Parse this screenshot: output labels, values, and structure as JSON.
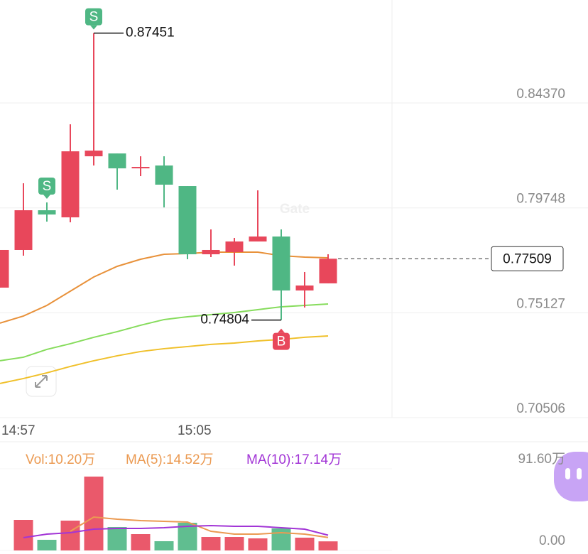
{
  "chart_data": [
    {
      "type": "candlestick",
      "categories": [
        "14:57",
        null,
        null,
        null,
        null,
        null,
        null,
        null,
        "15:05",
        null,
        null,
        null,
        null,
        null,
        null
      ],
      "open": [
        0.76235,
        0.77893,
        0.79645,
        0.79332,
        0.82023,
        0.82148,
        0.81523,
        0.81617,
        0.80709,
        0.77705,
        0.77799,
        0.78269,
        0.78488,
        0.7611,
        0.76423
      ],
      "high": [
        0.77893,
        0.80834,
        0.7999,
        0.83431,
        0.87451,
        0.82148,
        0.82023,
        0.82023,
        0.80709,
        0.788,
        0.78425,
        0.80522,
        0.788,
        0.76923,
        0.77705
      ],
      "low": [
        0.76235,
        0.77643,
        0.79145,
        0.79113,
        0.81617,
        0.80553,
        0.81147,
        0.7977,
        0.77486,
        0.7758,
        0.77205,
        0.78269,
        0.74804,
        0.75359,
        0.76423
      ],
      "close": [
        0.77893,
        0.79645,
        0.79458,
        0.82242,
        0.82274,
        0.81491,
        0.81554,
        0.80772,
        0.77705,
        0.77893,
        0.78269,
        0.78488,
        0.7611,
        0.76329,
        0.77509
      ],
      "up_color": "#e8475b",
      "down_color": "#4fb784",
      "series": [
        {
          "color": "#e8913a",
          "values": [
            0.7467,
            0.74983,
            0.75452,
            0.76078,
            0.76704,
            0.77173,
            0.77486,
            0.77705,
            0.77737,
            0.77799,
            0.77799,
            0.77799,
            0.77643,
            0.7758,
            0.77549
          ]
        },
        {
          "color": "#86dc5c",
          "values": [
            0.73012,
            0.73168,
            0.73513,
            0.73763,
            0.74045,
            0.74295,
            0.74577,
            0.74827,
            0.74952,
            0.75046,
            0.7514,
            0.75265,
            0.7539,
            0.75453,
            0.75515
          ]
        },
        {
          "color": "#f0c02a",
          "values": [
            0.72011,
            0.7223,
            0.7248,
            0.72762,
            0.73012,
            0.73231,
            0.73419,
            0.73544,
            0.73638,
            0.73732,
            0.73794,
            0.73888,
            0.73951,
            0.74045,
            0.74107
          ]
        }
      ],
      "ylim": [
        0.70506,
        0.8891
      ],
      "yticks": [
        {
          "value": 0.8437,
          "label": "0.84370"
        },
        {
          "value": 0.79748,
          "label": "0.79748"
        },
        {
          "value": 0.75127,
          "label": "0.75127"
        },
        {
          "value": 0.70506,
          "label": "0.70506"
        }
      ],
      "max_price": 0.87451,
      "min_price": 0.74804,
      "last_price": 0.77509,
      "signals": [
        {
          "index": 2,
          "label": "S",
          "color": "#4fb784"
        },
        {
          "index": 4,
          "label": "S",
          "color": "#4fb784"
        },
        {
          "index": 12,
          "label": "B",
          "color": "#e8475b"
        }
      ],
      "watermark": "Gate"
    },
    {
      "type": "bar",
      "bars": {
        "name": "Vol:10.20万",
        "color": "#eb9a52",
        "values": [
          null,
          34.25,
          11.95,
          33.45,
          82.84,
          26.28,
          18.32,
          10.35,
          31.06,
          15.13,
          15.13,
          13.54,
          24.69,
          14.34,
          10.2
        ]
      },
      "series": [
        {
          "name": "MA(5):14.52万",
          "color": "#eb9a52",
          "values": [
            null,
            null,
            null,
            21.51,
            37.44,
            35.05,
            33.45,
            32.66,
            31.86,
            21.51,
            18.32,
            18.32,
            19.91,
            18.32,
            14.52
          ]
        },
        {
          "name": "MA(10):17.14万",
          "color": "#a235d6",
          "values": [
            null,
            14.34,
            18.32,
            19.91,
            23.89,
            24.69,
            24.69,
            25.49,
            27.08,
            27.88,
            27.08,
            27.08,
            25.49,
            23.89,
            17.14
          ]
        }
      ],
      "ylim": [
        0,
        91.6
      ],
      "yticks": [
        {
          "value": 91.6,
          "label": "91.60万"
        },
        {
          "value": 0,
          "label": "0.00"
        }
      ]
    }
  ]
}
